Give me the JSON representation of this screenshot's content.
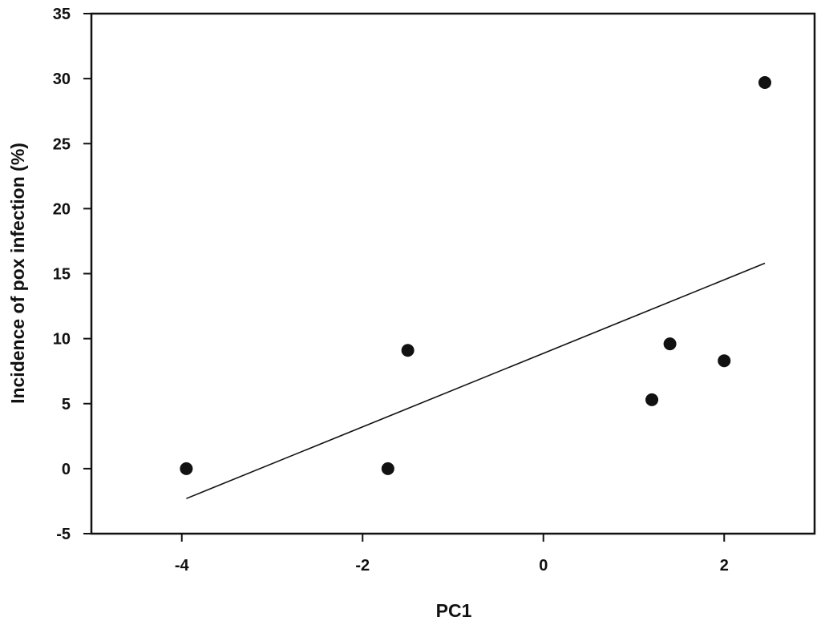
{
  "chart_data": {
    "type": "scatter",
    "title": "",
    "xlabel": "PC1",
    "ylabel": "Incidence of pox infection (%)",
    "xlim": [
      -5,
      3
    ],
    "ylim": [
      -5,
      35
    ],
    "x_ticks": [
      -4,
      -2,
      0,
      2
    ],
    "y_ticks": [
      -5,
      0,
      5,
      10,
      15,
      20,
      25,
      30,
      35
    ],
    "grid": false,
    "legend": "none",
    "point_color": "#111111",
    "series": [
      {
        "points": [
          {
            "x": -3.95,
            "y": 0.0
          },
          {
            "x": -1.72,
            "y": 0.0
          },
          {
            "x": -1.5,
            "y": 9.1
          },
          {
            "x": 1.2,
            "y": 5.3
          },
          {
            "x": 1.4,
            "y": 9.6
          },
          {
            "x": 2.0,
            "y": 8.3
          },
          {
            "x": 2.45,
            "y": 29.7
          }
        ]
      }
    ],
    "trendline": {
      "type": "linear",
      "start": {
        "x": -3.95,
        "y": -2.3
      },
      "end": {
        "x": 2.45,
        "y": 15.8
      }
    }
  }
}
